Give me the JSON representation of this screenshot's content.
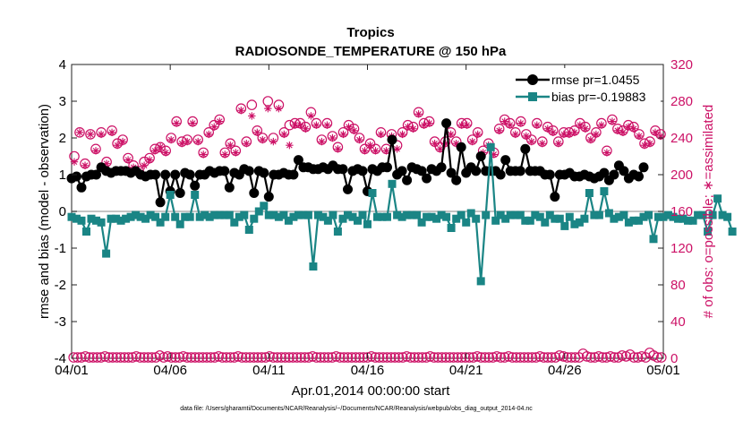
{
  "title_line1": "Tropics",
  "title_line2": "RADIOSONDE_TEMPERATURE @ 150 hPa",
  "ylabel_left": "rmse and bias (model - observation)",
  "ylabel_right": "# of obs: o=possible; ∗=assimilated",
  "xlabel": "Apr.01,2014 00:00:00 start",
  "footnote": "data file: /Users/gharamti/Documents/NCAR/Reanalysis/~/Documents/NCAR/Reanalysis/webpub/obs_diag_output_2014-04.nc",
  "legend": {
    "rmse_label": "rmse pr=1.0455",
    "bias_label": "bias pr=-0.19883"
  },
  "colors": {
    "rmse": "#000000",
    "bias": "#1a8585",
    "counts": "#cc1166",
    "zero_line": "#b0b0b0",
    "axis": "#222222"
  },
  "chart_data": {
    "type": "line",
    "x_range": [
      0,
      30
    ],
    "x_ticks": [
      0,
      5,
      10,
      15,
      20,
      25,
      30
    ],
    "x_tick_labels": [
      "04/01",
      "04/06",
      "04/11",
      "04/16",
      "04/21",
      "04/26",
      "05/01"
    ],
    "left_axis": {
      "ylim": [
        -4,
        4
      ],
      "ticks": [
        -4,
        -3,
        -2,
        -1,
        0,
        1,
        2,
        3,
        4
      ],
      "tick_labels": [
        "-4",
        "-3",
        "-2",
        "-1",
        "0",
        "1",
        "2",
        "3",
        "4"
      ]
    },
    "right_axis": {
      "ylim": [
        0,
        320
      ],
      "ticks": [
        0,
        40,
        80,
        120,
        160,
        200,
        240,
        280,
        320
      ],
      "tick_labels": [
        "0",
        "40",
        "80",
        "120",
        "160",
        "200",
        "240",
        "280",
        "320"
      ]
    },
    "time_step_days": 0.25,
    "series": [
      {
        "name": "rmse",
        "axis": "left",
        "values": [
          0.9,
          0.95,
          0.65,
          0.95,
          1.0,
          1.0,
          1.2,
          1.1,
          1.05,
          1.1,
          1.1,
          1.1,
          1.05,
          1.1,
          1.0,
          0.95,
          1.0,
          1.0,
          0.25,
          1.0,
          0.55,
          1.0,
          0.5,
          1.05,
          1.0,
          0.7,
          1.0,
          1.0,
          1.1,
          1.05,
          1.1,
          1.1,
          0.65,
          1.05,
          1.0,
          1.15,
          1.1,
          0.5,
          1.1,
          1.05,
          0.4,
          1.0,
          1.0,
          1.05,
          1.0,
          1.0,
          1.4,
          1.2,
          1.2,
          1.15,
          1.15,
          1.2,
          1.15,
          1.25,
          1.15,
          1.15,
          0.6,
          1.1,
          1.15,
          1.1,
          0.55,
          1.15,
          1.1,
          1.2,
          1.2,
          1.95,
          1.0,
          1.1,
          0.85,
          1.2,
          1.15,
          1.1,
          0.9,
          1.15,
          1.1,
          1.2,
          2.4,
          1.05,
          0.85,
          1.75,
          1.05,
          1.2,
          1.1,
          1.5,
          1.1,
          1.1,
          1.1,
          1.0,
          1.4,
          1.1,
          1.1,
          1.1,
          1.7,
          1.1,
          1.1,
          1.1,
          1.0,
          1.0,
          0.4,
          1.0,
          1.0,
          1.05,
          0.95,
          0.95,
          1.0,
          0.95,
          0.9,
          0.95,
          1.05,
          0.85,
          1.0,
          1.25,
          1.1,
          0.9,
          1.0,
          0.95,
          1.2
        ]
      },
      {
        "name": "bias",
        "axis": "left",
        "values": [
          -0.15,
          -0.2,
          -0.25,
          -0.55,
          -0.2,
          -0.25,
          -0.3,
          -1.15,
          -0.2,
          -0.2,
          -0.25,
          -0.2,
          -0.15,
          -0.1,
          -0.15,
          -0.2,
          -0.1,
          -0.15,
          -0.3,
          -0.15,
          0.45,
          -0.15,
          -0.35,
          -0.15,
          -0.15,
          0.45,
          -0.15,
          -0.1,
          -0.15,
          -0.1,
          -0.1,
          -0.1,
          -0.1,
          -0.3,
          -0.15,
          -0.1,
          -0.5,
          -0.2,
          0.0,
          0.15,
          -0.1,
          -0.1,
          -0.15,
          -0.1,
          -0.25,
          -0.15,
          -0.1,
          -0.1,
          -0.1,
          -1.5,
          -0.1,
          -0.15,
          -0.25,
          -0.1,
          -0.55,
          -0.2,
          -0.1,
          -0.15,
          -0.25,
          -0.1,
          -0.35,
          0.5,
          -0.15,
          -0.15,
          -0.15,
          0.75,
          -0.1,
          -0.15,
          -0.1,
          -0.1,
          -0.1,
          -0.3,
          -0.15,
          -0.15,
          -0.2,
          -0.1,
          -0.15,
          -0.45,
          -0.2,
          -0.1,
          -0.3,
          -0.05,
          -0.2,
          -1.9,
          -0.1,
          1.75,
          -0.25,
          -0.1,
          -0.2,
          -0.1,
          -0.1,
          -0.1,
          -0.25,
          -0.25,
          -0.1,
          -0.15,
          -0.3,
          -0.1,
          -0.2,
          -0.2,
          -0.4,
          -0.15,
          -0.35,
          -0.3,
          -0.2,
          0.5,
          -0.1,
          -0.1,
          0.55,
          -0.05,
          -0.2,
          -0.15,
          -0.1,
          -0.3,
          -0.25,
          -0.25,
          -0.15,
          -0.1,
          -0.75,
          -0.15,
          -0.15,
          -0.1,
          -0.15,
          -0.2,
          -0.2,
          -0.25,
          -0.25,
          -0.1,
          -0.1,
          -0.55,
          -0.1,
          0.35,
          -0.1,
          -0.15,
          -0.55
        ]
      },
      {
        "name": "obs_possible",
        "axis": "right",
        "values": [
          220,
          246,
          212,
          244,
          228,
          246,
          214,
          248,
          234,
          238,
          218,
          210,
          204,
          214,
          218,
          228,
          230,
          226,
          240,
          258,
          236,
          238,
          258,
          238,
          224,
          246,
          254,
          260,
          224,
          234,
          226,
          272,
          236,
          276,
          248,
          240,
          280,
          240,
          276,
          246,
          254,
          256,
          256,
          252,
          268,
          256,
          238,
          256,
          242,
          230,
          246,
          254,
          250,
          240,
          228,
          234,
          228,
          246,
          228,
          244,
          232,
          246,
          254,
          252,
          268,
          256,
          258,
          236,
          230,
          236,
          246,
          236,
          256,
          256,
          238,
          246,
          226,
          234,
          224,
          250,
          260,
          256,
          246,
          258,
          244,
          238,
          256,
          236,
          252,
          248,
          236,
          246,
          246,
          248,
          256,
          252,
          240,
          246,
          256,
          226,
          260,
          250,
          248,
          254,
          252,
          244,
          234,
          236,
          248,
          244
        ]
      },
      {
        "name": "obs_assimilated",
        "axis": "right",
        "values": [
          214,
          246,
          210,
          244,
          226,
          244,
          212,
          246,
          232,
          236,
          216,
          208,
          204,
          210,
          216,
          226,
          230,
          224,
          238,
          256,
          234,
          236,
          256,
          236,
          222,
          244,
          252,
          258,
          222,
          232,
          224,
          270,
          234,
          264,
          246,
          238,
          272,
          236,
          272,
          244,
          232,
          254,
          254,
          250,
          264,
          254,
          236,
          254,
          240,
          228,
          244,
          252,
          248,
          238,
          226,
          232,
          226,
          244,
          226,
          242,
          228,
          244,
          252,
          250,
          266,
          254,
          256,
          234,
          228,
          234,
          244,
          234,
          254,
          254,
          236,
          244,
          224,
          232,
          222,
          248,
          258,
          254,
          244,
          256,
          242,
          236,
          254,
          234,
          250,
          246,
          234,
          244,
          244,
          246,
          254,
          250,
          238,
          244,
          254,
          224,
          258,
          248,
          246,
          252,
          250,
          242,
          232,
          234,
          246,
          242
        ]
      },
      {
        "name": "obs_low_possible",
        "axis": "right",
        "values": [
          1,
          1,
          1,
          2,
          1,
          1,
          1,
          1,
          2,
          1,
          1,
          1,
          1,
          1,
          1,
          1,
          2,
          1,
          1,
          1,
          1,
          1,
          3,
          1,
          2,
          1,
          1,
          1,
          2,
          1,
          1,
          1,
          1,
          1,
          1,
          1,
          1,
          2,
          1,
          1,
          1,
          1,
          2,
          1,
          1,
          1,
          1,
          1,
          1,
          1,
          2,
          1,
          1,
          1,
          1,
          1,
          1,
          1,
          1,
          1,
          1,
          2,
          1,
          1,
          1,
          1,
          1,
          2,
          1,
          1,
          1,
          1,
          1,
          1,
          1,
          1,
          2,
          1,
          1,
          1,
          1,
          1,
          1,
          1,
          1,
          2,
          1,
          1,
          1,
          1,
          1,
          2,
          1,
          1,
          1,
          1,
          1,
          1,
          1,
          1,
          1,
          1,
          1,
          2,
          1,
          1,
          1,
          1,
          2,
          1,
          1,
          2,
          1,
          1,
          1,
          1,
          1,
          1,
          1,
          2,
          1,
          1,
          1,
          1,
          3,
          2,
          1,
          1,
          1,
          1,
          5,
          2,
          1,
          1,
          2,
          1,
          1,
          2,
          1,
          1,
          3,
          2,
          4,
          1,
          1,
          2,
          1,
          6,
          3,
          1,
          1
        ]
      }
    ]
  }
}
